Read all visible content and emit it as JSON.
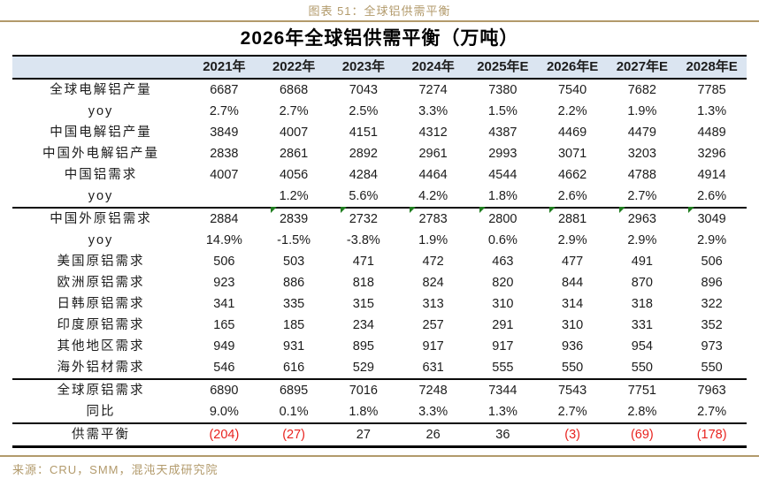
{
  "figure": {
    "caption": "图表 51：全球铝供需平衡",
    "source": "来源：CRU，SMM，混沌天成研究院"
  },
  "colors": {
    "header_bg": "#dbe5f1",
    "accent_tan": "#b29a6b",
    "negative_red": "#e8231f",
    "marker_green": "#1f7d1f"
  },
  "table": {
    "title": "2026年全球铝供需平衡（万吨）",
    "columns": [
      "2021年",
      "2022年",
      "2023年",
      "2024年",
      "2025年E",
      "2026年E",
      "2027年E",
      "2028年E"
    ],
    "rows": [
      {
        "label": "全球电解铝产量",
        "values": [
          "6687",
          "6868",
          "7043",
          "7274",
          "7380",
          "7540",
          "7682",
          "7785"
        ]
      },
      {
        "label": "yoy",
        "values": [
          "2.7%",
          "2.7%",
          "2.5%",
          "3.3%",
          "1.5%",
          "2.2%",
          "1.9%",
          "1.3%"
        ]
      },
      {
        "label": "中国电解铝产量",
        "values": [
          "3849",
          "4007",
          "4151",
          "4312",
          "4387",
          "4469",
          "4479",
          "4489"
        ]
      },
      {
        "label": "中国外电解铝产量",
        "values": [
          "2838",
          "2861",
          "2892",
          "2961",
          "2993",
          "3071",
          "3203",
          "3296"
        ]
      },
      {
        "label": "中国铝需求",
        "values": [
          "4007",
          "4056",
          "4284",
          "4464",
          "4544",
          "4662",
          "4788",
          "4914"
        ]
      },
      {
        "label": "yoy",
        "values": [
          "",
          "1.2%",
          "5.6%",
          "4.2%",
          "1.8%",
          "2.6%",
          "2.7%",
          "2.6%"
        ],
        "section_end": true
      },
      {
        "label": "中国外原铝需求",
        "values": [
          "2884",
          "2839",
          "2732",
          "2783",
          "2800",
          "2881",
          "2963",
          "3049"
        ],
        "markers": [
          false,
          true,
          true,
          true,
          true,
          true,
          true,
          true
        ]
      },
      {
        "label": "yoy",
        "values": [
          "14.9%",
          "-1.5%",
          "-3.8%",
          "1.9%",
          "0.6%",
          "2.9%",
          "2.9%",
          "2.9%"
        ]
      },
      {
        "label": "美国原铝需求",
        "values": [
          "506",
          "503",
          "471",
          "472",
          "463",
          "477",
          "491",
          "506"
        ]
      },
      {
        "label": "欧洲原铝需求",
        "values": [
          "923",
          "886",
          "818",
          "824",
          "820",
          "844",
          "870",
          "896"
        ]
      },
      {
        "label": "日韩原铝需求",
        "values": [
          "341",
          "335",
          "315",
          "313",
          "310",
          "314",
          "318",
          "322"
        ]
      },
      {
        "label": "印度原铝需求",
        "values": [
          "165",
          "185",
          "234",
          "257",
          "291",
          "310",
          "331",
          "352"
        ]
      },
      {
        "label": "其他地区需求",
        "values": [
          "949",
          "931",
          "895",
          "917",
          "917",
          "936",
          "954",
          "973"
        ]
      },
      {
        "label": "海外铝材需求",
        "values": [
          "546",
          "616",
          "529",
          "631",
          "555",
          "550",
          "550",
          "550"
        ],
        "section_end": true
      },
      {
        "label": "全球原铝需求",
        "values": [
          "6890",
          "6895",
          "7016",
          "7248",
          "7344",
          "7543",
          "7751",
          "7963"
        ]
      },
      {
        "label": "同比",
        "values": [
          "9.0%",
          "0.1%",
          "1.8%",
          "3.3%",
          "1.3%",
          "2.7%",
          "2.8%",
          "2.7%"
        ],
        "section_end": true
      },
      {
        "label": "供需平衡",
        "values": [
          "(204)",
          "(27)",
          "27",
          "26",
          "36",
          "(3)",
          "(69)",
          "(178)"
        ],
        "negatives": [
          true,
          true,
          false,
          false,
          false,
          true,
          true,
          true
        ],
        "last": true
      }
    ]
  },
  "chart_data": {
    "type": "table",
    "title": "2026年全球铝供需平衡（万吨）",
    "unit": "万吨",
    "categories": [
      "2021年",
      "2022年",
      "2023年",
      "2024年",
      "2025年E",
      "2026年E",
      "2027年E",
      "2028年E"
    ],
    "series": [
      {
        "name": "全球电解铝产量",
        "values": [
          6687,
          6868,
          7043,
          7274,
          7380,
          7540,
          7682,
          7785
        ]
      },
      {
        "name": "全球电解铝产量yoy(%)",
        "values": [
          2.7,
          2.7,
          2.5,
          3.3,
          1.5,
          2.2,
          1.9,
          1.3
        ]
      },
      {
        "name": "中国电解铝产量",
        "values": [
          3849,
          4007,
          4151,
          4312,
          4387,
          4469,
          4479,
          4489
        ]
      },
      {
        "name": "中国外电解铝产量",
        "values": [
          2838,
          2861,
          2892,
          2961,
          2993,
          3071,
          3203,
          3296
        ]
      },
      {
        "name": "中国铝需求",
        "values": [
          4007,
          4056,
          4284,
          4464,
          4544,
          4662,
          4788,
          4914
        ]
      },
      {
        "name": "中国铝需求yoy(%)",
        "values": [
          null,
          1.2,
          5.6,
          4.2,
          1.8,
          2.6,
          2.7,
          2.6
        ]
      },
      {
        "name": "中国外原铝需求",
        "values": [
          2884,
          2839,
          2732,
          2783,
          2800,
          2881,
          2963,
          3049
        ]
      },
      {
        "name": "中国外原铝需求yoy(%)",
        "values": [
          14.9,
          -1.5,
          -3.8,
          1.9,
          0.6,
          2.9,
          2.9,
          2.9
        ]
      },
      {
        "name": "美国原铝需求",
        "values": [
          506,
          503,
          471,
          472,
          463,
          477,
          491,
          506
        ]
      },
      {
        "name": "欧洲原铝需求",
        "values": [
          923,
          886,
          818,
          824,
          820,
          844,
          870,
          896
        ]
      },
      {
        "name": "日韩原铝需求",
        "values": [
          341,
          335,
          315,
          313,
          310,
          314,
          318,
          322
        ]
      },
      {
        "name": "印度原铝需求",
        "values": [
          165,
          185,
          234,
          257,
          291,
          310,
          331,
          352
        ]
      },
      {
        "name": "其他地区需求",
        "values": [
          949,
          931,
          895,
          917,
          917,
          936,
          954,
          973
        ]
      },
      {
        "name": "海外铝材需求",
        "values": [
          546,
          616,
          529,
          631,
          555,
          550,
          550,
          550
        ]
      },
      {
        "name": "全球原铝需求",
        "values": [
          6890,
          6895,
          7016,
          7248,
          7344,
          7543,
          7751,
          7963
        ]
      },
      {
        "name": "全球原铝需求同比(%)",
        "values": [
          9.0,
          0.1,
          1.8,
          3.3,
          1.3,
          2.7,
          2.8,
          2.7
        ]
      },
      {
        "name": "供需平衡",
        "values": [
          -204,
          -27,
          27,
          26,
          36,
          -3,
          -69,
          -178
        ]
      }
    ]
  }
}
